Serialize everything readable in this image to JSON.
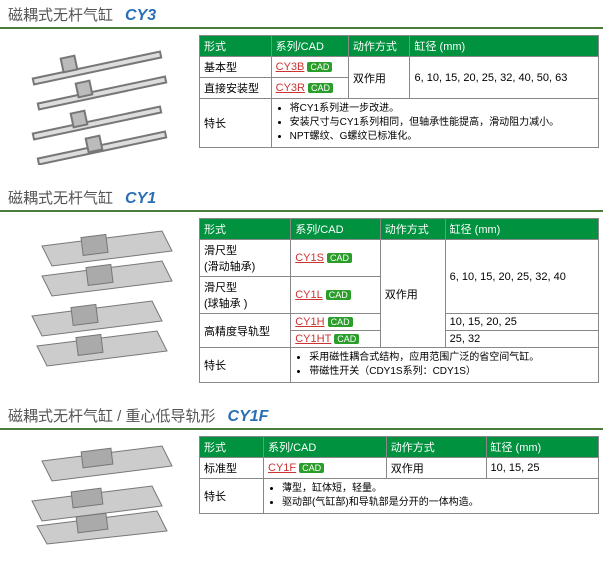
{
  "headers": {
    "type": "形式",
    "series": "系列/CAD",
    "action": "动作方式",
    "bore": "缸径 (mm)",
    "feature": "特长"
  },
  "cad": "CAD",
  "sections": [
    {
      "title": "磁耦式无杆气缸",
      "code": "CY3",
      "rows": [
        {
          "type": "基本型",
          "links": [
            "CY3B"
          ],
          "action": "双作用",
          "bore": "6, 10, 15, 20, 25, 32, 40, 50, 63",
          "action_rowspan": 2,
          "bore_rowspan": 2
        },
        {
          "type": "直接安装型",
          "links": [
            "CY3R"
          ]
        }
      ],
      "features": [
        "将CY1系列进一步改进。",
        "安装尺寸与CY1系列相同，但轴承性能提高，滑动阻力减小。",
        "NPT螺纹、G螺纹已标准化。"
      ]
    },
    {
      "title": "磁耦式无杆气缸",
      "code": "CY1",
      "rows": [
        {
          "type": "滑尺型\n(滑动轴承)",
          "links": [
            "CY1S"
          ],
          "action": "双作用",
          "bore": "6, 10, 15, 20, 25, 32, 40",
          "action_rowspan": 4,
          "bore_rowspan": 2
        },
        {
          "type": "滑尺型\n(球轴承 )",
          "links": [
            "CY1L"
          ]
        },
        {
          "type": "高精度导轨型",
          "links": [
            "CY1H"
          ],
          "bore": "10, 15, 20, 25",
          "type_rowspan": 2
        },
        {
          "links": [
            "CY1HT"
          ],
          "bore": "25, 32"
        }
      ],
      "features": [
        "采用磁性耦合式结构，应用范围广泛的省空间气缸。",
        "带磁性开关（CDY1S系列：CDY1S）"
      ]
    },
    {
      "title": "磁耦式无杆气缸  / 重心低导轨形",
      "code": "CY1F",
      "rows": [
        {
          "type": "标准型",
          "links": [
            "CY1F"
          ],
          "action": "双作用",
          "bore": "10, 15, 25"
        }
      ],
      "features": [
        "薄型，缸体短，轻量。",
        "驱动部(气缸部)和导轨部是分开的一体构造。"
      ]
    }
  ]
}
